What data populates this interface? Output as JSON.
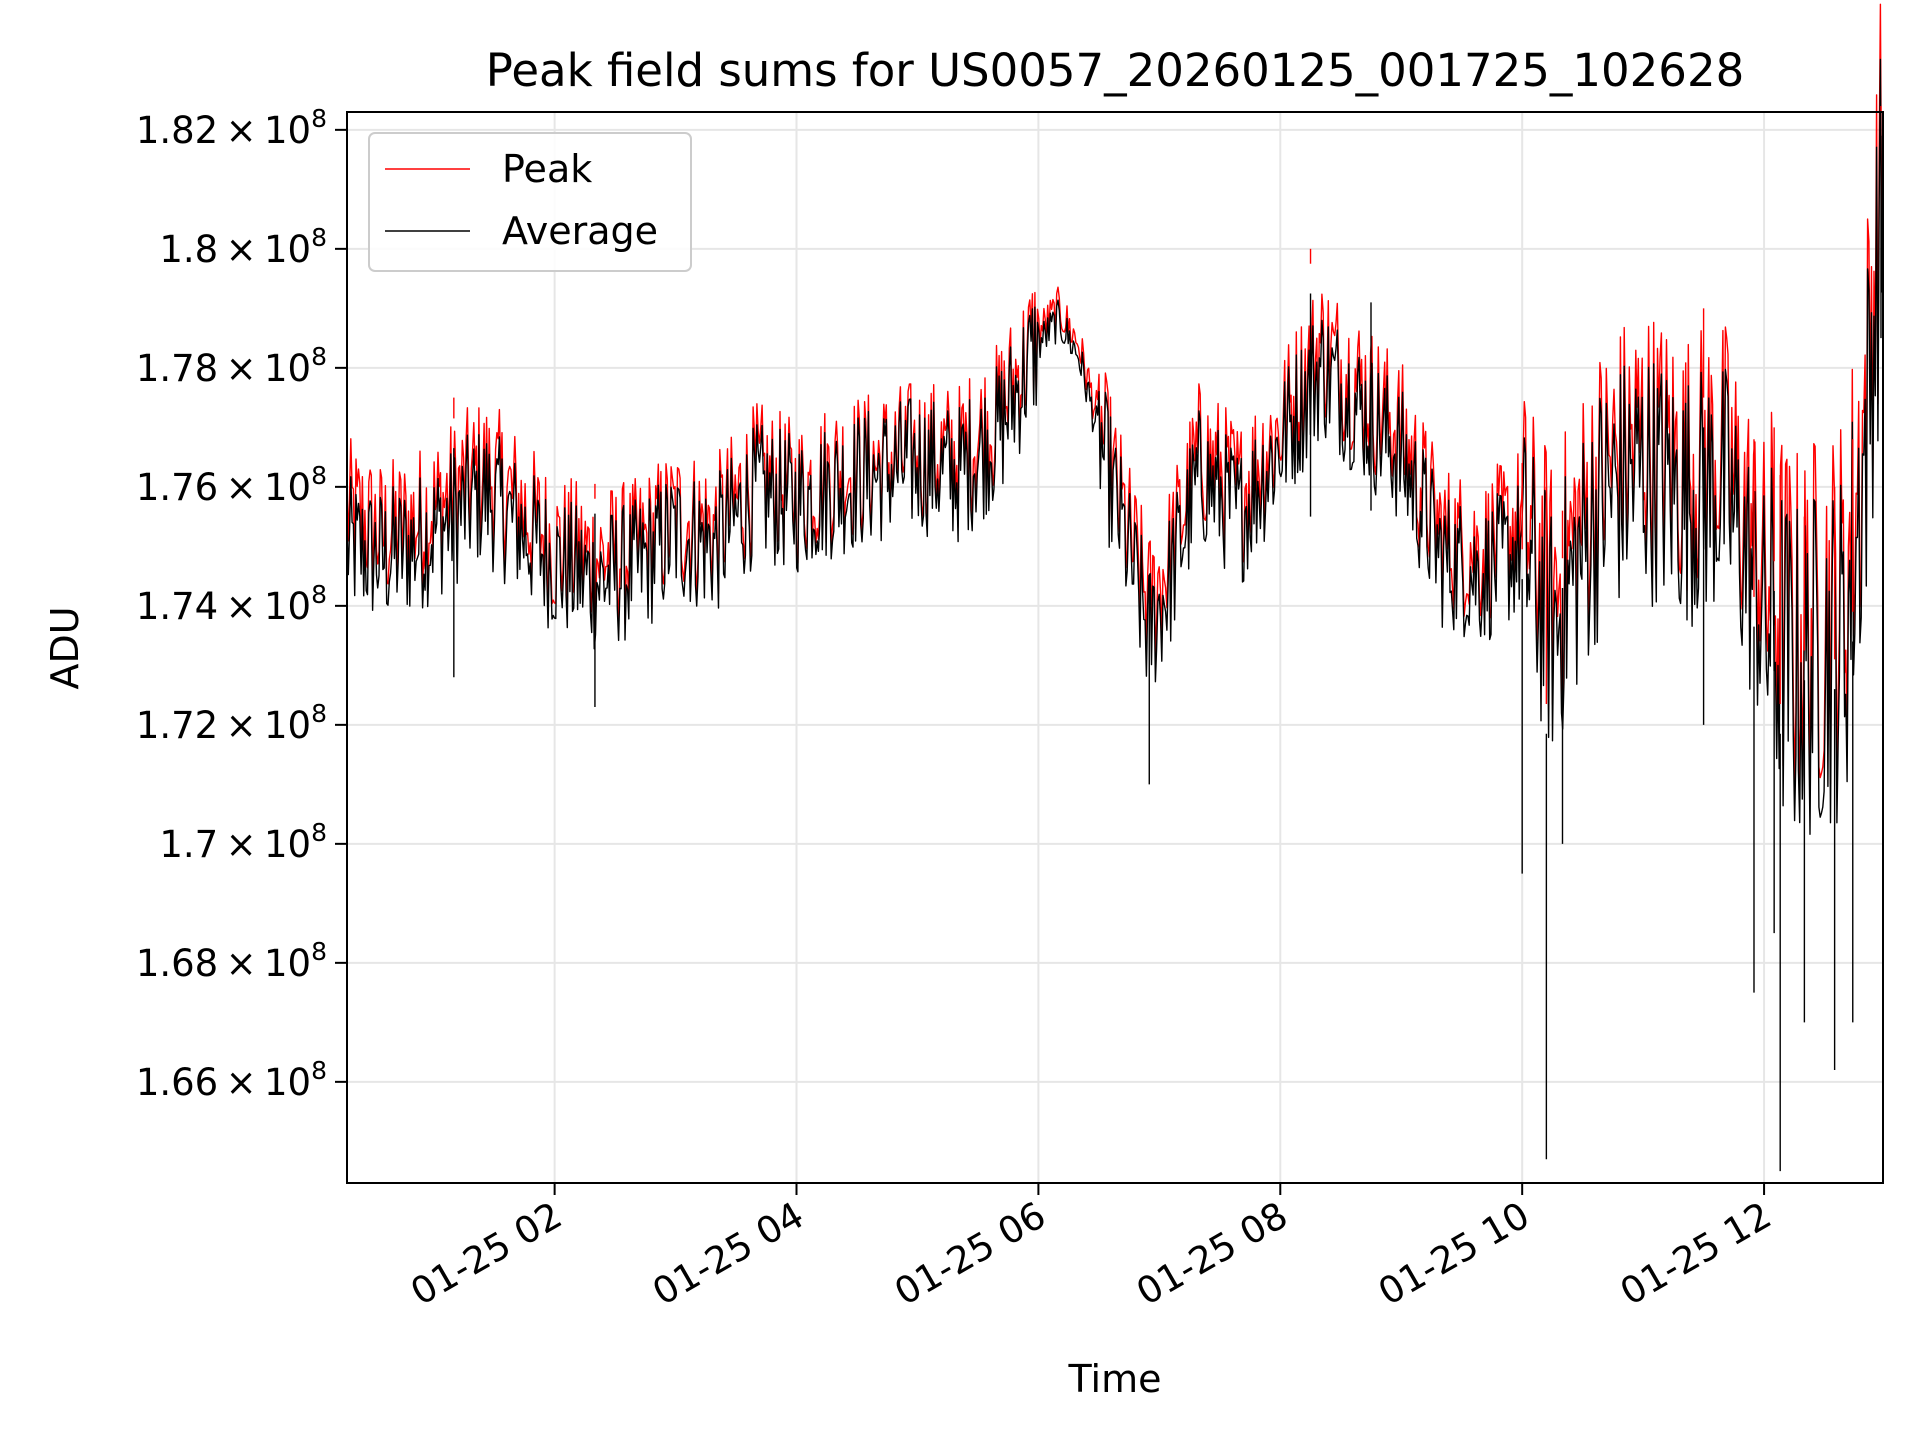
{
  "chart_data": {
    "type": "line",
    "title": "Peak field sums for US0057_20260125_001725_102628",
    "xlabel": "Time",
    "ylabel": "ADU",
    "x_range": [
      "01-25 00:17",
      "01-25 12:59"
    ],
    "ylim": [
      164300000,
      182300000
    ],
    "grid": true,
    "legend_position": "upper-left",
    "x_ticks": [
      "01-25 02",
      "01-25 04",
      "01-25 06",
      "01-25 08",
      "01-25 10",
      "01-25 12"
    ],
    "y_ticks": [
      {
        "base": "1.66",
        "exp": "8",
        "value": 166000000
      },
      {
        "base": "1.68",
        "exp": "8",
        "value": 168000000
      },
      {
        "base": "1.7",
        "exp": "8",
        "value": 170000000
      },
      {
        "base": "1.72",
        "exp": "8",
        "value": 172000000
      },
      {
        "base": "1.74",
        "exp": "8",
        "value": 174000000
      },
      {
        "base": "1.76",
        "exp": "8",
        "value": 176000000
      },
      {
        "base": "1.78",
        "exp": "8",
        "value": 178000000
      },
      {
        "base": "1.8",
        "exp": "8",
        "value": 180000000
      },
      {
        "base": "1.82",
        "exp": "8",
        "value": 182000000
      }
    ],
    "series": [
      {
        "name": "Peak",
        "color": "#ff0000",
        "points": [
          [
            "01-25 00:17",
            175.6
          ],
          [
            "01-25 00:35",
            175.2
          ],
          [
            "01-25 00:50",
            175.4
          ],
          [
            "01-25 01:10",
            175.9
          ],
          [
            "01-25 01:25",
            176.3
          ],
          [
            "01-25 01:40",
            175.8
          ],
          [
            "01-25 02:00",
            175.0
          ],
          [
            "01-25 02:20",
            174.8
          ],
          [
            "01-25 02:40",
            174.9
          ],
          [
            "01-25 03:00",
            175.5
          ],
          [
            "01-25 03:20",
            175.3
          ],
          [
            "01-25 03:40",
            176.2
          ],
          [
            "01-25 04:00",
            175.9
          ],
          [
            "01-25 04:20",
            176.3
          ],
          [
            "01-25 04:40",
            176.4
          ],
          [
            "01-25 05:00",
            176.6
          ],
          [
            "01-25 05:20",
            176.5
          ],
          [
            "01-25 05:40",
            177.2
          ],
          [
            "01-25 06:00",
            178.6
          ],
          [
            "01-25 06:10",
            179.0
          ],
          [
            "01-25 06:20",
            178.4
          ],
          [
            "01-25 06:40",
            175.8
          ],
          [
            "01-25 06:55",
            174.0
          ],
          [
            "01-25 07:05",
            174.8
          ],
          [
            "01-25 07:20",
            176.6
          ],
          [
            "01-25 07:40",
            175.9
          ],
          [
            "01-25 08:00",
            177.0
          ],
          [
            "01-25 08:20",
            178.4
          ],
          [
            "01-25 08:40",
            177.7
          ],
          [
            "01-25 09:00",
            176.9
          ],
          [
            "01-25 09:20",
            175.2
          ],
          [
            "01-25 09:40",
            174.9
          ],
          [
            "01-25 10:00",
            175.5
          ],
          [
            "01-25 10:15",
            174.2
          ],
          [
            "01-25 10:40",
            176.3
          ],
          [
            "01-25 11:00",
            176.9
          ],
          [
            "01-25 11:20",
            176.4
          ],
          [
            "01-25 11:40",
            176.6
          ],
          [
            "01-25 12:00",
            174.6
          ],
          [
            "01-25 12:15",
            173.6
          ],
          [
            "01-25 12:40",
            174.2
          ],
          [
            "01-25 12:50",
            177.2
          ],
          [
            "01-25 12:59",
            181.8
          ]
        ]
      },
      {
        "name": "Average",
        "color": "#000000",
        "points": [
          [
            "01-25 00:17",
            175.0
          ],
          [
            "01-25 00:35",
            174.8
          ],
          [
            "01-25 00:50",
            175.0
          ],
          [
            "01-25 01:10",
            175.5
          ],
          [
            "01-25 01:25",
            175.9
          ],
          [
            "01-25 01:40",
            175.4
          ],
          [
            "01-25 02:00",
            174.7
          ],
          [
            "01-25 02:20",
            174.4
          ],
          [
            "01-25 02:40",
            174.6
          ],
          [
            "01-25 03:00",
            175.2
          ],
          [
            "01-25 03:20",
            175.0
          ],
          [
            "01-25 03:40",
            175.9
          ],
          [
            "01-25 04:00",
            175.7
          ],
          [
            "01-25 04:20",
            176.0
          ],
          [
            "01-25 04:40",
            176.2
          ],
          [
            "01-25 05:00",
            176.4
          ],
          [
            "01-25 05:20",
            176.2
          ],
          [
            "01-25 05:40",
            176.9
          ],
          [
            "01-25 06:00",
            178.4
          ],
          [
            "01-25 06:10",
            178.8
          ],
          [
            "01-25 06:20",
            178.2
          ],
          [
            "01-25 06:40",
            175.5
          ],
          [
            "01-25 06:55",
            173.5
          ],
          [
            "01-25 07:05",
            174.4
          ],
          [
            "01-25 07:20",
            176.2
          ],
          [
            "01-25 07:40",
            175.5
          ],
          [
            "01-25 08:00",
            176.7
          ],
          [
            "01-25 08:20",
            178.0
          ],
          [
            "01-25 08:40",
            177.3
          ],
          [
            "01-25 09:00",
            176.5
          ],
          [
            "01-25 09:20",
            174.8
          ],
          [
            "01-25 09:40",
            174.5
          ],
          [
            "01-25 10:00",
            175.0
          ],
          [
            "01-25 10:15",
            173.5
          ],
          [
            "01-25 10:40",
            175.8
          ],
          [
            "01-25 11:00",
            176.3
          ],
          [
            "01-25 11:20",
            175.8
          ],
          [
            "01-25 11:40",
            176.0
          ],
          [
            "01-25 12:00",
            173.8
          ],
          [
            "01-25 12:15",
            172.8
          ],
          [
            "01-25 12:40",
            173.4
          ],
          [
            "01-25 12:50",
            176.5
          ],
          [
            "01-25 12:59",
            181.0
          ]
        ]
      }
    ],
    "spikes": [
      [
        "01-25 01:10",
        177.5,
        172.8
      ],
      [
        "01-25 02:20",
        175.8,
        172.3
      ],
      [
        "01-25 06:55",
        175.0,
        171.0
      ],
      [
        "01-25 08:15",
        180.0,
        175.5
      ],
      [
        "01-25 08:45",
        179.6,
        175.6
      ],
      [
        "01-25 10:00",
        176.4,
        169.5
      ],
      [
        "01-25 10:12",
        176.0,
        164.7
      ],
      [
        "01-25 10:20",
        175.6,
        170.0
      ],
      [
        "01-25 11:30",
        179.0,
        172.0
      ],
      [
        "01-25 11:55",
        176.8,
        167.5
      ],
      [
        "01-25 12:05",
        177.0,
        168.5
      ],
      [
        "01-25 12:08",
        176.2,
        164.5
      ],
      [
        "01-25 12:20",
        175.5,
        167.0
      ],
      [
        "01-25 12:35",
        176.0,
        166.2
      ],
      [
        "01-25 12:44",
        176.8,
        167.0
      ],
      [
        "01-25 12:58",
        182.3,
        178.5
      ]
    ]
  }
}
